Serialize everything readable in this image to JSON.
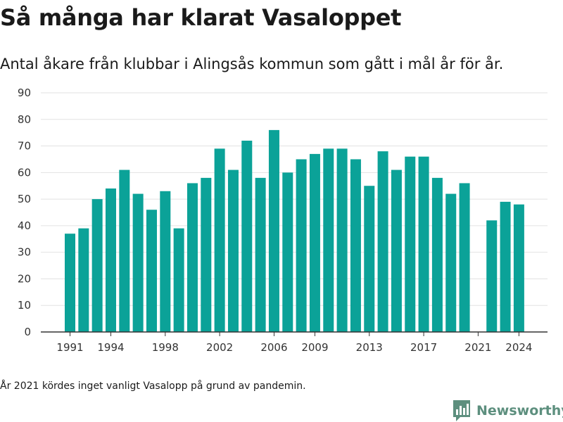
{
  "header": {
    "title": "Så många har klarat Vasaloppet",
    "subtitle": "Antal åkare från klubbar i Alingsås kommun som gått i mål år för år."
  },
  "footer": {
    "note": "År 2021 kördes inget vanligt Vasalopp på grund av pandemin.",
    "brand_name": "Newsworthy",
    "brand_icon": "bar-chart-logo-icon"
  },
  "colors": {
    "bar": "#0ba298",
    "grid": "#e2e2e2",
    "axis": "#333333",
    "brand": "#5d8f7e"
  },
  "chart_data": {
    "type": "bar",
    "title": "Så många har klarat Vasaloppet",
    "subtitle": "Antal åkare från klubbar i Alingsås kommun som gått i mål år för år.",
    "xlabel": "",
    "ylabel": "",
    "ylim": [
      0,
      90
    ],
    "yticks": [
      0,
      10,
      20,
      30,
      40,
      50,
      60,
      70,
      80,
      90
    ],
    "xticks": [
      1991,
      1994,
      1998,
      2002,
      2006,
      2009,
      2013,
      2017,
      2021,
      2024
    ],
    "grid": true,
    "legend": "none",
    "categories": [
      1991,
      1992,
      1993,
      1994,
      1995,
      1996,
      1997,
      1998,
      1999,
      2000,
      2001,
      2002,
      2003,
      2004,
      2005,
      2006,
      2007,
      2008,
      2009,
      2010,
      2011,
      2012,
      2013,
      2014,
      2015,
      2016,
      2017,
      2018,
      2019,
      2020,
      2021,
      2022,
      2023,
      2024
    ],
    "values": [
      37,
      39,
      50,
      54,
      61,
      52,
      46,
      53,
      39,
      56,
      58,
      69,
      61,
      72,
      58,
      76,
      60,
      65,
      67,
      69,
      69,
      65,
      55,
      68,
      61,
      66,
      66,
      58,
      52,
      56,
      null,
      42,
      49,
      48
    ]
  }
}
